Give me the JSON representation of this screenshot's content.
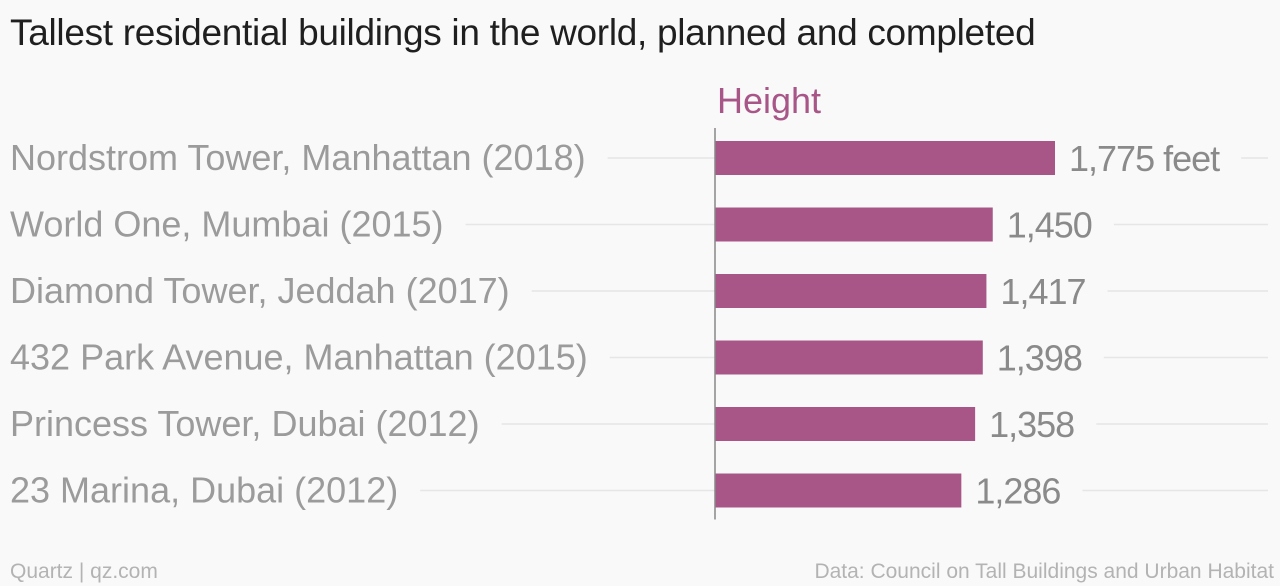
{
  "title": "Tallest residential buildings in the world, planned and completed",
  "chart_data": {
    "type": "bar",
    "orientation": "horizontal",
    "series": [
      {
        "name": "Height",
        "color": "#a85688",
        "values": [
          1775,
          1450,
          1417,
          1398,
          1358,
          1286
        ],
        "value_labels": [
          "1,775 feet",
          "1,450",
          "1,417",
          "1,398",
          "1,358",
          "1,286"
        ]
      }
    ],
    "categories": [
      "Nordstrom Tower, Manhattan (2018)",
      "World One, Mumbai (2015)",
      "Diamond Tower, Jeddah (2017)",
      "432 Park Avenue, Manhattan (2015)",
      "Princess Tower, Dubai (2012)",
      "23 Marina, Dubai (2012)"
    ],
    "xlim": [
      0,
      1775
    ],
    "grid": true,
    "legend": "top"
  },
  "footer": {
    "source_left": "Quartz | qz.com",
    "source_right": "Data: Council on Tall Buildings and Urban Habitat"
  },
  "colors": {
    "bar": "#a85688",
    "category_text": "#9b9b9b",
    "value_text": "#8a8a8a",
    "gridline": "#e6e6e6",
    "axis": "#888888"
  }
}
